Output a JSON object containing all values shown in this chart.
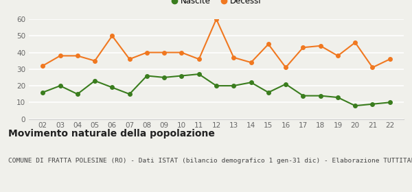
{
  "years": [
    2,
    3,
    4,
    5,
    6,
    7,
    8,
    9,
    10,
    11,
    12,
    13,
    14,
    15,
    16,
    17,
    18,
    19,
    20,
    21,
    22
  ],
  "nascite": [
    16,
    20,
    15,
    23,
    19,
    15,
    26,
    25,
    26,
    27,
    20,
    20,
    22,
    16,
    21,
    14,
    14,
    13,
    8,
    9,
    10
  ],
  "decessi": [
    32,
    38,
    38,
    35,
    50,
    36,
    40,
    40,
    40,
    36,
    60,
    37,
    34,
    45,
    31,
    43,
    44,
    38,
    46,
    31,
    36
  ],
  "nascite_color": "#3a7d1e",
  "decessi_color": "#f07820",
  "background_color": "#f0f0eb",
  "grid_color": "#ffffff",
  "spine_color": "#cccccc",
  "tick_color": "#666666",
  "ylim": [
    0,
    60
  ],
  "yticks": [
    0,
    10,
    20,
    30,
    40,
    50,
    60
  ],
  "title": "Movimento naturale della popolazione",
  "subtitle": "COMUNE DI FRATTA POLESINE (RO) - Dati ISTAT (bilancio demografico 1 gen-31 dic) - Elaborazione TUTTITALIA.IT",
  "legend_nascite": "Nascite",
  "legend_decessi": "Decessi",
  "title_fontsize": 10,
  "subtitle_fontsize": 6.8,
  "marker_size": 4,
  "line_width": 1.5,
  "tick_fontsize": 7.5
}
